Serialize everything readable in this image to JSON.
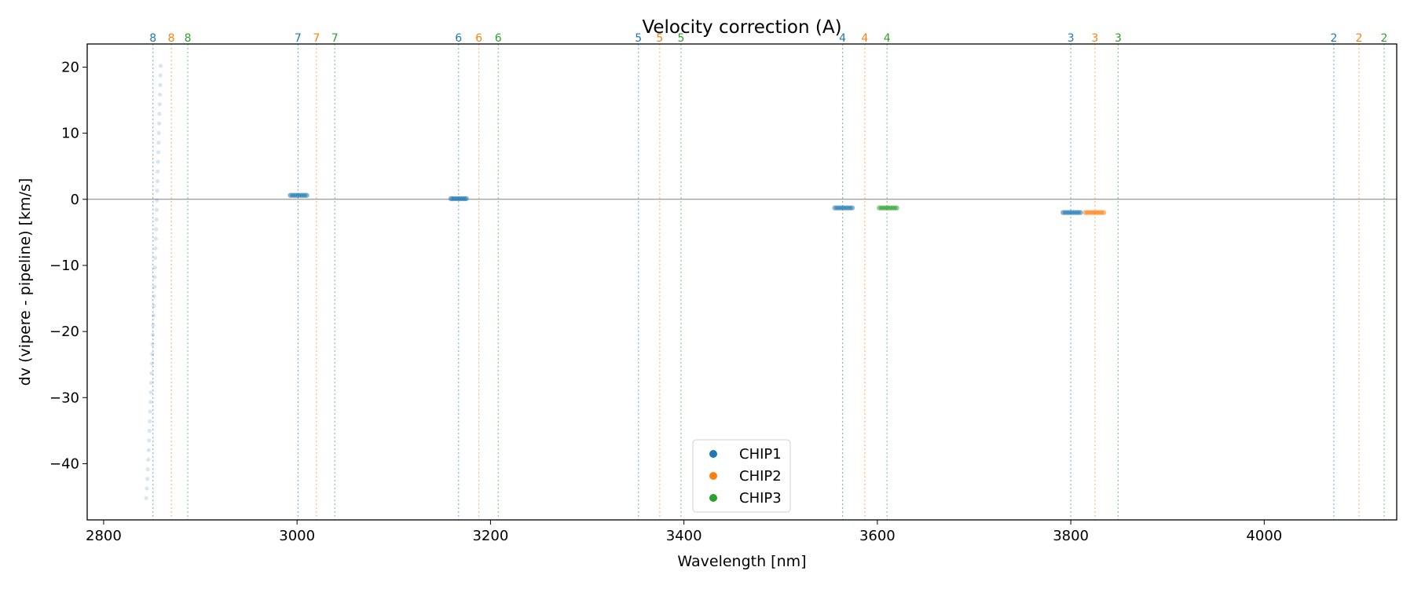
{
  "chart_data": {
    "type": "scatter",
    "title": "Velocity correction (A)",
    "xlabel": "Wavelength [nm]",
    "ylabel": "dv (vipere - pipeline) [km/s]",
    "xlim": [
      2783,
      4137
    ],
    "ylim": [
      -48.5,
      23.5
    ],
    "xticks": [
      2800,
      3000,
      3200,
      3400,
      3600,
      3800,
      4000
    ],
    "yticks": [
      20,
      10,
      0,
      -10,
      -20,
      -30,
      -40
    ],
    "tick_labels_x": [
      "2800",
      "3000",
      "3200",
      "3400",
      "3600",
      "3800",
      "4000"
    ],
    "tick_labels_y": [
      "20",
      "10",
      "0",
      "−10",
      "−20",
      "−30",
      "−40"
    ],
    "zero_line": 0,
    "colors": {
      "CHIP1": "#1f77b4",
      "CHIP2": "#ff7f0e",
      "CHIP3": "#2ca02c"
    },
    "order_lines": [
      {
        "order": "8",
        "chip": "CHIP1",
        "x": 2851
      },
      {
        "order": "8",
        "chip": "CHIP2",
        "x": 2870
      },
      {
        "order": "8",
        "chip": "CHIP3",
        "x": 2887
      },
      {
        "order": "7",
        "chip": "CHIP1",
        "x": 3001
      },
      {
        "order": "7",
        "chip": "CHIP2",
        "x": 3020
      },
      {
        "order": "7",
        "chip": "CHIP3",
        "x": 3039
      },
      {
        "order": "6",
        "chip": "CHIP1",
        "x": 3167
      },
      {
        "order": "6",
        "chip": "CHIP2",
        "x": 3188
      },
      {
        "order": "6",
        "chip": "CHIP3",
        "x": 3208
      },
      {
        "order": "5",
        "chip": "CHIP1",
        "x": 3353
      },
      {
        "order": "5",
        "chip": "CHIP2",
        "x": 3375
      },
      {
        "order": "5",
        "chip": "CHIP3",
        "x": 3397
      },
      {
        "order": "4",
        "chip": "CHIP1",
        "x": 3564
      },
      {
        "order": "4",
        "chip": "CHIP2",
        "x": 3587
      },
      {
        "order": "4",
        "chip": "CHIP3",
        "x": 3610
      },
      {
        "order": "3",
        "chip": "CHIP1",
        "x": 3800
      },
      {
        "order": "3",
        "chip": "CHIP2",
        "x": 3825
      },
      {
        "order": "3",
        "chip": "CHIP3",
        "x": 3849
      },
      {
        "order": "2",
        "chip": "CHIP1",
        "x": 4072
      },
      {
        "order": "2",
        "chip": "CHIP2",
        "x": 4098
      },
      {
        "order": "2",
        "chip": "CHIP3",
        "x": 4124
      }
    ],
    "series": [
      {
        "name": "CHIP1",
        "kind": "cluster",
        "x_range": [
          2993,
          3010
        ],
        "y": 0.6,
        "n": 9
      },
      {
        "name": "CHIP1",
        "kind": "cluster",
        "x_range": [
          3159,
          3175
        ],
        "y": 0.1,
        "n": 9
      },
      {
        "name": "CHIP1",
        "kind": "cluster",
        "x_range": [
          3556,
          3574
        ],
        "y": -1.3,
        "n": 9
      },
      {
        "name": "CHIP1",
        "kind": "cluster",
        "x_range": [
          3792,
          3810
        ],
        "y": -2.0,
        "n": 9
      },
      {
        "name": "CHIP2",
        "kind": "cluster",
        "x_range": [
          3815,
          3834
        ],
        "y": -2.0,
        "n": 9
      },
      {
        "name": "CHIP3",
        "kind": "cluster",
        "x_range": [
          3602,
          3620
        ],
        "y": -1.3,
        "n": 9
      },
      {
        "name": "CHIP1",
        "kind": "outlier-trail",
        "x_range": [
          2844,
          2859
        ],
        "y_range": [
          -45.2,
          20.2
        ],
        "n": 46
      }
    ],
    "legend": {
      "placement": "lower-center",
      "entries": [
        "CHIP1",
        "CHIP2",
        "CHIP3"
      ]
    }
  }
}
